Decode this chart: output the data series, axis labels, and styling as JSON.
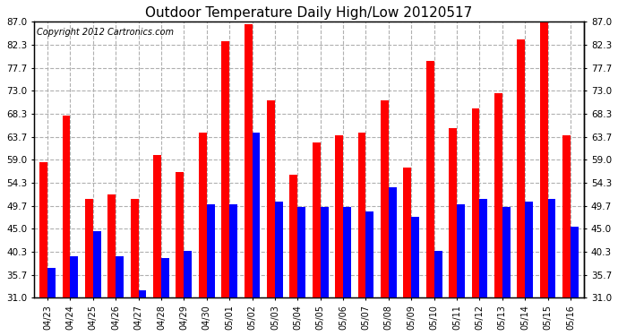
{
  "title": "Outdoor Temperature Daily High/Low 20120517",
  "copyright": "Copyright 2012 Cartronics.com",
  "dates": [
    "04/23",
    "04/24",
    "04/25",
    "04/26",
    "04/27",
    "04/28",
    "04/29",
    "04/30",
    "05/01",
    "05/02",
    "05/03",
    "05/04",
    "05/05",
    "05/06",
    "05/07",
    "05/08",
    "05/09",
    "05/10",
    "05/11",
    "05/12",
    "05/13",
    "05/14",
    "05/15",
    "05/16"
  ],
  "highs": [
    58.5,
    68.0,
    51.0,
    52.0,
    51.0,
    60.0,
    56.5,
    64.5,
    83.0,
    86.5,
    71.0,
    56.0,
    62.5,
    64.0,
    64.5,
    71.0,
    57.5,
    79.0,
    65.5,
    69.5,
    72.5,
    83.5,
    87.0,
    64.0
  ],
  "lows": [
    37.0,
    39.5,
    44.5,
    39.5,
    32.5,
    39.0,
    40.5,
    50.0,
    50.0,
    64.5,
    50.5,
    49.5,
    49.5,
    49.5,
    48.5,
    53.5,
    47.5,
    40.5,
    50.0,
    51.0,
    49.5,
    50.5,
    51.0,
    45.5
  ],
  "high_color": "#ff0000",
  "low_color": "#0000ff",
  "bg_color": "#ffffff",
  "grid_color": "#b0b0b0",
  "plot_bg_color": "#ffffff",
  "ymin": 31.0,
  "ymax": 87.0,
  "yticks": [
    31.0,
    35.7,
    40.3,
    45.0,
    49.7,
    54.3,
    59.0,
    63.7,
    68.3,
    73.0,
    77.7,
    82.3,
    87.0
  ],
  "bar_width": 0.35,
  "title_fontsize": 11,
  "copyright_fontsize": 7,
  "tick_fontsize": 7,
  "ytick_fontsize": 7.5
}
